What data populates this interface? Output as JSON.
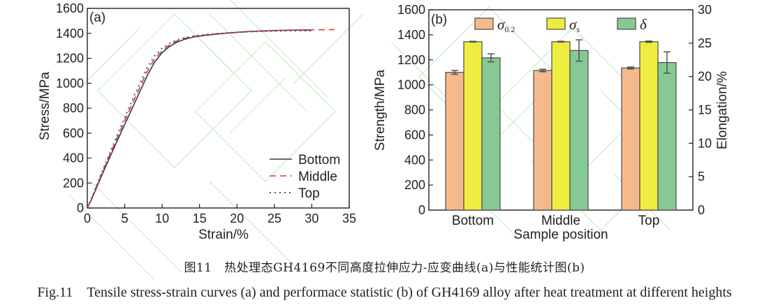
{
  "figure": {
    "caption_zh": "图11　热处理态GH4169不同高度拉伸应力-应变曲线(a)与性能统计图(b)",
    "caption_en": "Fig.11　Tensile stress-strain curves (a) and performace statistic (b) of GH4169 alloy after heat treatment at different heights"
  },
  "chart_data": [
    {
      "type": "line",
      "panel_label": "(a)",
      "xlabel": "Strain/%",
      "ylabel": "Stress/MPa",
      "xlim": [
        0,
        35
      ],
      "ylim": [
        0,
        1600
      ],
      "x_ticks": [
        "0",
        "5",
        "10",
        "15",
        "20",
        "25",
        "30",
        "35"
      ],
      "y_ticks": [
        "0",
        "200",
        "400",
        "600",
        "800",
        "1000",
        "1200",
        "1400",
        "1600"
      ],
      "legend_position": "lower-right",
      "series": [
        {
          "name": "Bottom",
          "line_style": "solid",
          "color": "#3a3a3a",
          "points": [
            [
              0,
              0
            ],
            [
              0.5,
              60
            ],
            [
              1,
              130
            ],
            [
              2,
              270
            ],
            [
              3,
              405
            ],
            [
              4,
              540
            ],
            [
              5,
              670
            ],
            [
              6,
              800
            ],
            [
              7,
              930
            ],
            [
              8,
              1060
            ],
            [
              9,
              1170
            ],
            [
              10,
              1245
            ],
            [
              11,
              1295
            ],
            [
              12,
              1330
            ],
            [
              13,
              1352
            ],
            [
              14,
              1368
            ],
            [
              15,
              1378
            ],
            [
              17,
              1392
            ],
            [
              19,
              1403
            ],
            [
              21,
              1412
            ],
            [
              23,
              1418
            ],
            [
              25,
              1422
            ],
            [
              27,
              1425
            ],
            [
              29,
              1427
            ],
            [
              30,
              1426
            ]
          ]
        },
        {
          "name": "Middle",
          "line_style": "dashed",
          "color": "#e8352b",
          "points": [
            [
              0,
              0
            ],
            [
              0.5,
              65
            ],
            [
              1,
              140
            ],
            [
              2,
              285
            ],
            [
              3,
              425
            ],
            [
              4,
              565
            ],
            [
              5,
              700
            ],
            [
              6,
              835
            ],
            [
              7,
              965
            ],
            [
              8,
              1095
            ],
            [
              9,
              1195
            ],
            [
              10,
              1262
            ],
            [
              11,
              1308
            ],
            [
              12,
              1340
            ],
            [
              13,
              1360
            ],
            [
              14,
              1373
            ],
            [
              15,
              1382
            ],
            [
              17,
              1395
            ],
            [
              19,
              1405
            ],
            [
              21,
              1413
            ],
            [
              23,
              1419
            ],
            [
              25,
              1423
            ],
            [
              27,
              1426
            ],
            [
              29,
              1428
            ],
            [
              31,
              1429
            ],
            [
              33,
              1430
            ]
          ]
        },
        {
          "name": "Top",
          "line_style": "dotted",
          "color": "#3f5a98",
          "points": [
            [
              0,
              0
            ],
            [
              0.5,
              70
            ],
            [
              1,
              145
            ],
            [
              2,
              295
            ],
            [
              3,
              440
            ],
            [
              4,
              585
            ],
            [
              5,
              725
            ],
            [
              6,
              865
            ],
            [
              7,
              995
            ],
            [
              8,
              1125
            ],
            [
              9,
              1220
            ],
            [
              10,
              1280
            ],
            [
              11,
              1320
            ],
            [
              12,
              1348
            ],
            [
              13,
              1366
            ],
            [
              14,
              1377
            ],
            [
              15,
              1385
            ],
            [
              17,
              1396
            ],
            [
              19,
              1405
            ],
            [
              21,
              1411
            ],
            [
              23,
              1415
            ],
            [
              25,
              1418
            ],
            [
              27,
              1420
            ],
            [
              29,
              1421
            ],
            [
              30,
              1419
            ]
          ]
        }
      ]
    },
    {
      "type": "bar",
      "panel_label": "(b)",
      "xlabel": "Sample position",
      "ylabel": "Strength/MPa",
      "ylabel_right": "Elongation/%",
      "categories": [
        "Bottom",
        "Middle",
        "Top"
      ],
      "ylim": [
        0,
        1600
      ],
      "ylim_right": [
        0,
        30
      ],
      "y_ticks": [
        "0",
        "200",
        "400",
        "600",
        "800",
        "1000",
        "1200",
        "1400",
        "1600"
      ],
      "y_ticks_right": [
        "0",
        "5",
        "10",
        "15",
        "20",
        "25",
        "30"
      ],
      "legend_position": "top",
      "series": [
        {
          "name": "σ0.2",
          "symbol": "σ",
          "subscript": "0.2",
          "axis": "left",
          "color": "#f6b98c",
          "values": [
            1100,
            1115,
            1135
          ],
          "errors": [
            15,
            10,
            8
          ]
        },
        {
          "name": "σs",
          "symbol": "σ",
          "subscript": "s",
          "axis": "left",
          "color": "#eded3f",
          "values": [
            1345,
            1345,
            1345
          ],
          "errors": [
            3,
            3,
            5
          ]
        },
        {
          "name": "δ",
          "symbol": "δ",
          "subscript": "",
          "axis": "right",
          "color": "#86c995",
          "values": [
            22.8,
            23.9,
            22.1
          ],
          "errors": [
            0.6,
            1.6,
            1.6
          ]
        }
      ]
    }
  ]
}
